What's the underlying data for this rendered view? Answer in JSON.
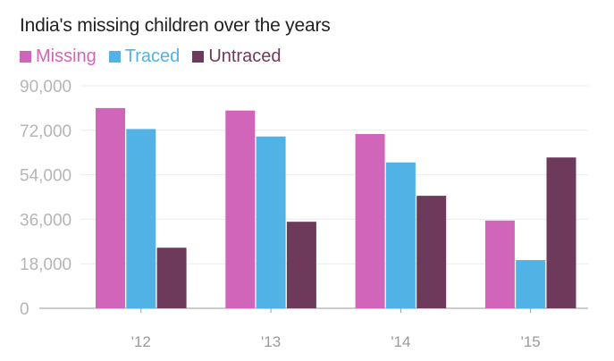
{
  "chart_data": {
    "type": "bar",
    "title": "India's missing children over the years",
    "xlabel": "",
    "ylabel": "",
    "categories": [
      "'12",
      "'13",
      "'14",
      "'15"
    ],
    "series": [
      {
        "name": "Missing",
        "color": "#d165b9",
        "values": [
          81000,
          80000,
          70500,
          35500
        ]
      },
      {
        "name": "Traced",
        "color": "#51b3e5",
        "values": [
          72500,
          69500,
          59000,
          19500
        ]
      },
      {
        "name": "Untraced",
        "color": "#6e3a5c",
        "values": [
          24500,
          35000,
          45500,
          61000
        ]
      }
    ],
    "ylim": [
      0,
      90000
    ],
    "yticks": [
      {
        "value": 0,
        "label": "0"
      },
      {
        "value": 18000,
        "label": "18,000"
      },
      {
        "value": 36000,
        "label": "36,000"
      },
      {
        "value": 54000,
        "label": "54,000"
      },
      {
        "value": 72000,
        "label": "72,000"
      },
      {
        "value": 90000,
        "label": "90,000"
      }
    ],
    "grid": true,
    "legend_position": "top-left"
  }
}
